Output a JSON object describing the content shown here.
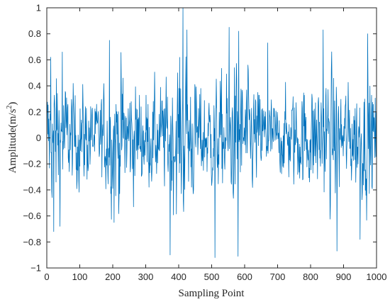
{
  "chart_data": {
    "type": "line",
    "title": "",
    "xlabel": "Sampling Point",
    "ylabel": "Amplitude(m/s",
    "ylabel_superscript": "2",
    "ylabel_suffix": ")",
    "xlim": [
      0,
      1000
    ],
    "ylim": [
      -1,
      1
    ],
    "xticks": [
      0,
      100,
      200,
      300,
      400,
      500,
      600,
      700,
      800,
      900,
      1000
    ],
    "xtick_labels": [
      "0",
      "100",
      "200",
      "300",
      "400",
      "500",
      "600",
      "700",
      "800",
      "900",
      "1000"
    ],
    "yticks": [
      -1,
      -0.8,
      -0.6,
      -0.4,
      -0.2,
      0,
      0.2,
      0.4,
      0.6,
      0.8,
      1
    ],
    "ytick_labels": [
      "−1",
      "−0.8",
      "−0.6",
      "−0.4",
      "−0.2",
      "0",
      "0.2",
      "0.4",
      "0.6",
      "0.8",
      "1"
    ],
    "grid": false,
    "line_color": "#0072BD",
    "series": [
      {
        "x_start": 0,
        "x_step": 1,
        "n_points": 1000,
        "notable_extremes": [
          {
            "x": 12,
            "y": 0.62
          },
          {
            "x": 21,
            "y": -0.72
          },
          {
            "x": 47,
            "y": 0.66
          },
          {
            "x": 190,
            "y": 0.75
          },
          {
            "x": 204,
            "y": -0.65
          },
          {
            "x": 374,
            "y": -0.9
          },
          {
            "x": 413,
            "y": 1.0
          },
          {
            "x": 425,
            "y": 0.83
          },
          {
            "x": 510,
            "y": -0.92
          },
          {
            "x": 553,
            "y": 0.85
          },
          {
            "x": 582,
            "y": 0.82
          },
          {
            "x": 580,
            "y": -0.91
          },
          {
            "x": 670,
            "y": 0.73
          },
          {
            "x": 838,
            "y": 0.83
          },
          {
            "x": 880,
            "y": -0.87
          },
          {
            "x": 950,
            "y": -0.78
          },
          {
            "x": 973,
            "y": 0.8
          }
        ]
      }
    ]
  }
}
